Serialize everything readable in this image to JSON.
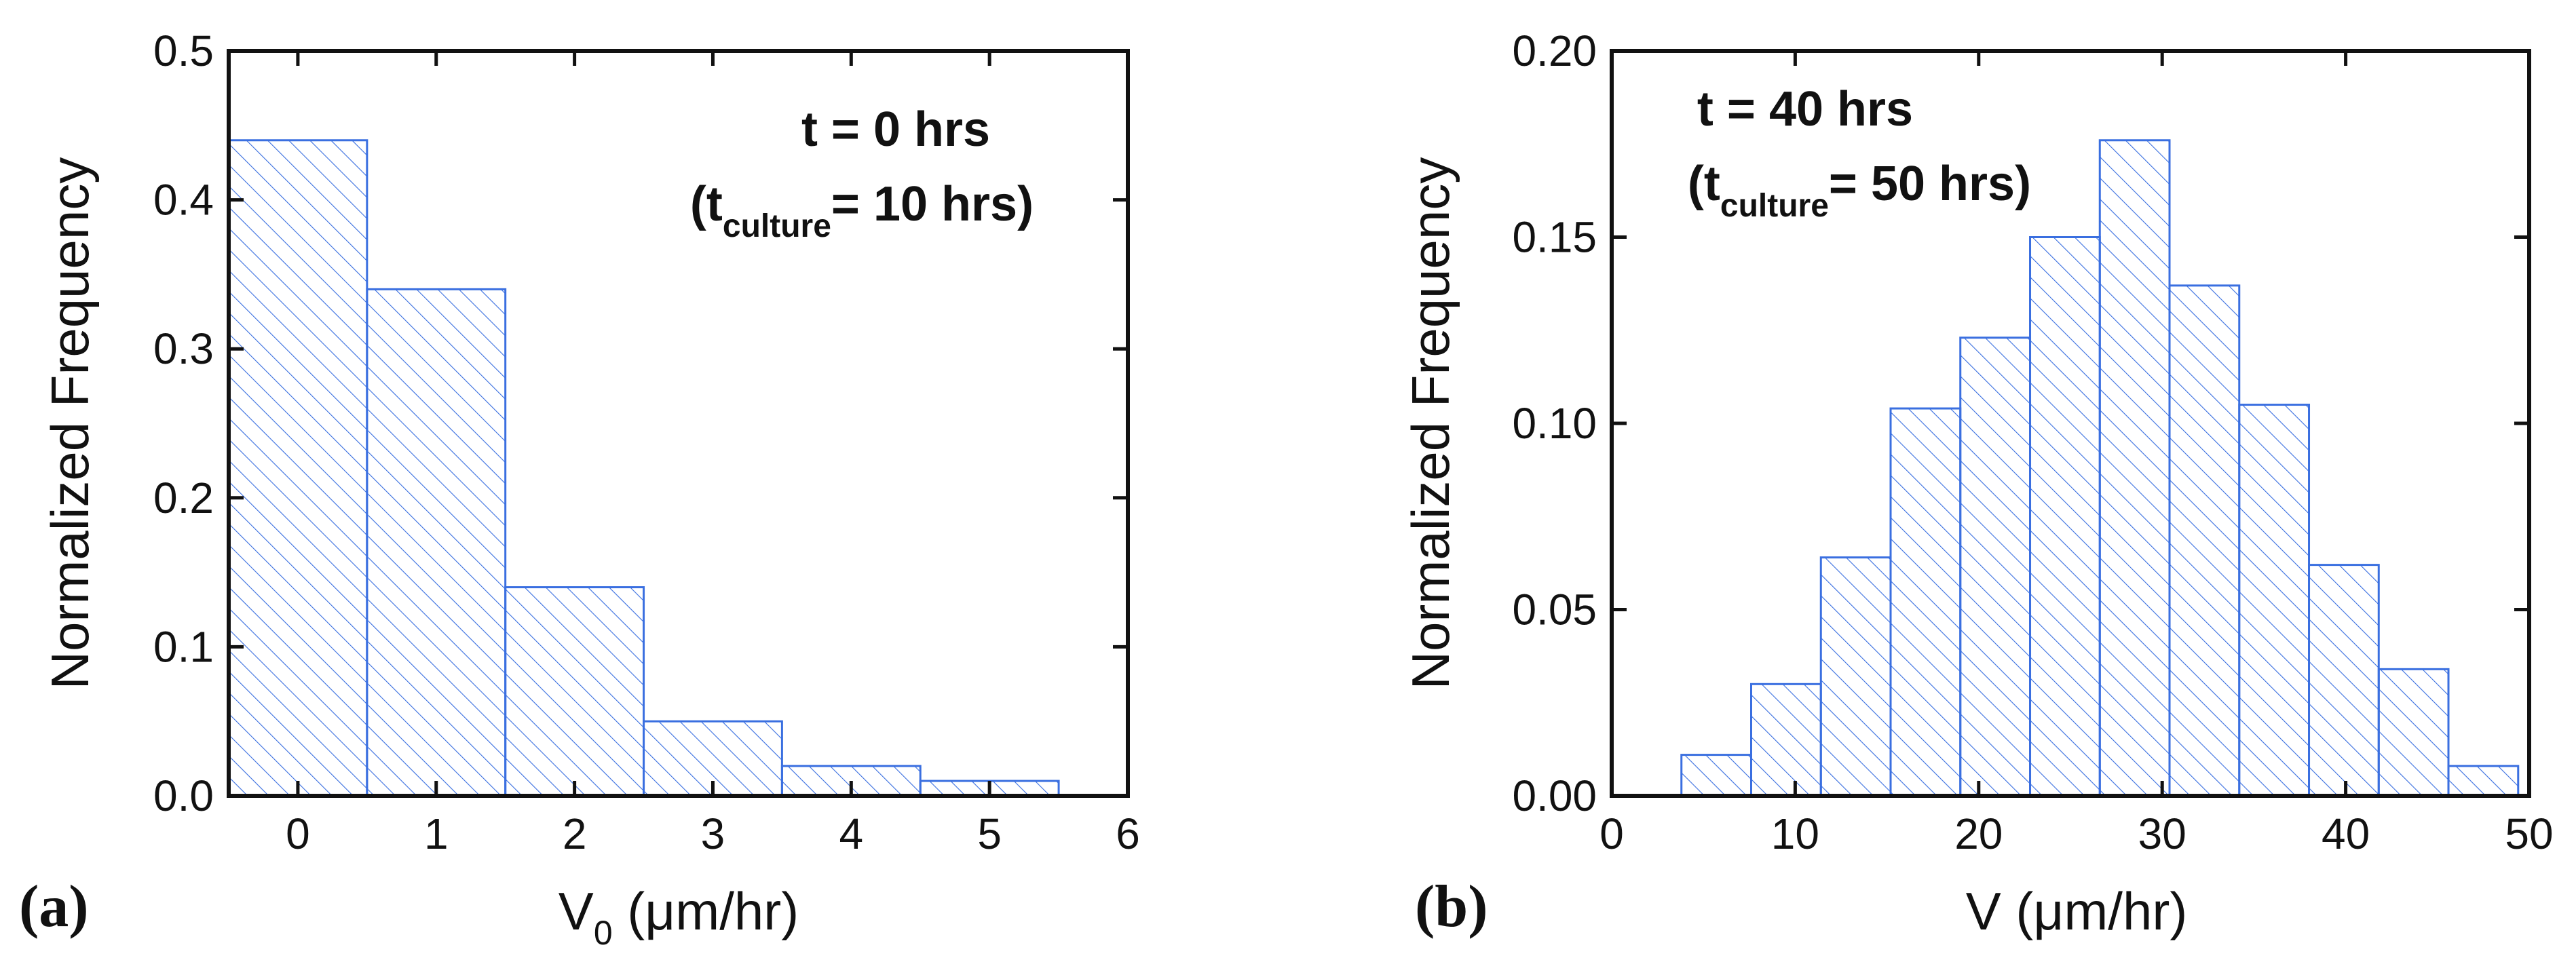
{
  "colors": {
    "bar_edge": "#3a6fe0",
    "hatch": "#3a6fe0",
    "axis": "#111111"
  },
  "chart_data": [
    {
      "type": "bar",
      "panel_label": "(a)",
      "xlabel_main": "V",
      "xlabel_sub": "0",
      "xlabel_rest": " (μm/hr)",
      "ylabel": "Normalized Frequency",
      "xlim": [
        -0.5,
        6
      ],
      "ylim": [
        0,
        0.5
      ],
      "xticks": [
        "0",
        "1",
        "2",
        "3",
        "4",
        "5",
        "6"
      ],
      "xtick_values": [
        0,
        1,
        2,
        3,
        4,
        5,
        6
      ],
      "yticks": [
        "0.0",
        "0.1",
        "0.2",
        "0.3",
        "0.4",
        "0.5"
      ],
      "ytick_values": [
        0,
        0.1,
        0.2,
        0.3,
        0.4,
        0.5
      ],
      "bars": [
        {
          "x0": -0.5,
          "x1": 0.5,
          "value": 0.44
        },
        {
          "x0": 0.5,
          "x1": 1.5,
          "value": 0.34
        },
        {
          "x0": 1.5,
          "x1": 2.5,
          "value": 0.14
        },
        {
          "x0": 2.5,
          "x1": 3.5,
          "value": 0.05
        },
        {
          "x0": 3.5,
          "x1": 4.5,
          "value": 0.02
        },
        {
          "x0": 4.5,
          "x1": 5.5,
          "value": 0.01
        }
      ],
      "annotation_line1": "t = 0 hrs",
      "annotation_open": "(t",
      "annotation_sub": "culture",
      "annotation_close": "= 10 hrs)"
    },
    {
      "type": "bar",
      "panel_label": "(b)",
      "xlabel_main": "V (μm/hr)",
      "ylabel": "Normalized Frequency",
      "xlim": [
        0,
        50
      ],
      "ylim": [
        0,
        0.2
      ],
      "xticks": [
        "0",
        "10",
        "20",
        "30",
        "40",
        "50"
      ],
      "xtick_values": [
        0,
        10,
        20,
        30,
        40,
        50
      ],
      "yticks": [
        "0.00",
        "0.05",
        "0.10",
        "0.15",
        "0.20"
      ],
      "ytick_values": [
        0,
        0.05,
        0.1,
        0.15,
        0.2
      ],
      "bars": [
        {
          "x0": 3.8,
          "x1": 7.6,
          "value": 0.011
        },
        {
          "x0": 7.6,
          "x1": 11.4,
          "value": 0.03
        },
        {
          "x0": 11.4,
          "x1": 15.2,
          "value": 0.064
        },
        {
          "x0": 15.2,
          "x1": 19.0,
          "value": 0.104
        },
        {
          "x0": 19.0,
          "x1": 22.8,
          "value": 0.123
        },
        {
          "x0": 22.8,
          "x1": 26.6,
          "value": 0.15
        },
        {
          "x0": 26.6,
          "x1": 30.4,
          "value": 0.176
        },
        {
          "x0": 30.4,
          "x1": 34.2,
          "value": 0.137
        },
        {
          "x0": 34.2,
          "x1": 38.0,
          "value": 0.105
        },
        {
          "x0": 38.0,
          "x1": 41.8,
          "value": 0.062
        },
        {
          "x0": 41.8,
          "x1": 45.6,
          "value": 0.034
        },
        {
          "x0": 45.6,
          "x1": 49.4,
          "value": 0.008
        }
      ],
      "annotation_line1": "t = 40 hrs",
      "annotation_open": "(t",
      "annotation_sub": "culture",
      "annotation_close": "= 50 hrs)"
    }
  ]
}
